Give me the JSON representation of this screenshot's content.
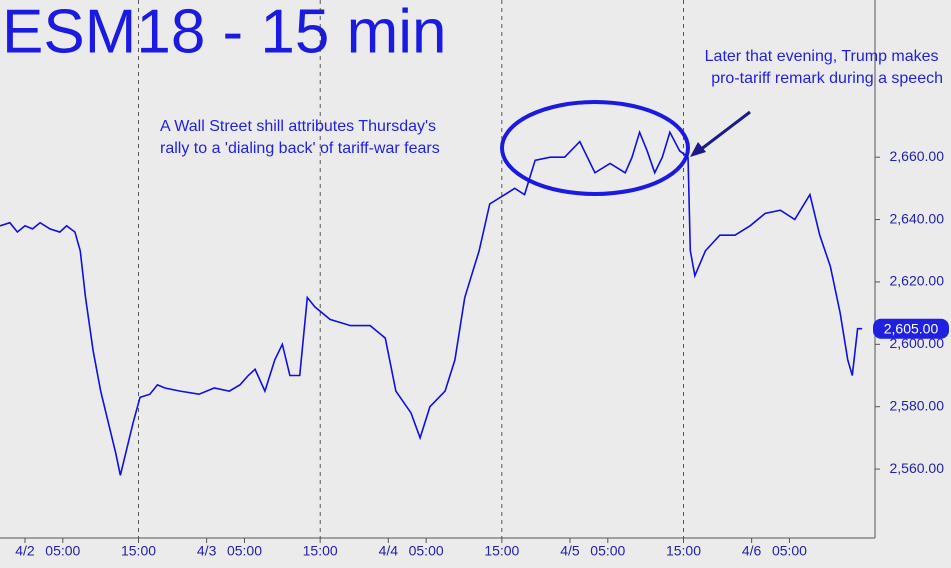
{
  "chart_data": {
    "type": "line",
    "title": "ESM18 - 15 min",
    "annotations": [
      {
        "lines": [
          "A Wall Street shill attributes Thursday's",
          "rally to a 'dialing back' of tariff-war fears"
        ]
      },
      {
        "lines": [
          "Later that evening, Trump makes",
          "pro-tariff remark during a speech"
        ]
      }
    ],
    "x": [
      -3.3,
      -2,
      -1,
      0,
      1,
      2,
      3.3,
      4.6,
      5.5,
      6.6,
      7.3,
      8,
      9,
      10,
      11,
      12,
      12.6,
      13.5,
      14.3,
      15.2,
      16.5,
      17.5,
      18.5,
      20.5,
      23,
      25,
      27,
      28.4,
      29.5,
      30.4,
      31.7,
      33,
      34,
      35,
      36.3,
      37.3,
      38.3,
      40.3,
      43,
      45.6,
      47.6,
      49,
      51,
      52.2,
      53.5,
      55.5,
      56.8,
      58.1,
      60,
      61.4,
      63.4,
      64.7,
      66,
      67.4,
      69.4,
      71.3,
      73.3,
      74.3,
      75.3,
      77.3,
      79.3,
      80.2,
      81.2,
      82.2,
      83.2,
      84.2,
      85.2,
      86.5,
      87.6,
      87.9,
      88.5,
      89.9,
      91.8,
      93.8,
      95.8,
      97.8,
      99.8,
      101.7,
      103.7,
      105,
      106.4,
      107.7,
      108.7,
      109.3,
      110,
      110.6
    ],
    "series": [
      {
        "name": "ESM18",
        "color": "#1010e0",
        "values": [
          2638,
          2639,
          2636,
          2638,
          2637,
          2639,
          2637,
          2636,
          2638,
          2636,
          2630,
          2615,
          2598,
          2585,
          2575,
          2565,
          2558,
          2567,
          2575,
          2583,
          2584,
          2587,
          2586,
          2585,
          2584,
          2586,
          2585,
          2587,
          2590,
          2592,
          2585,
          2595,
          2600,
          2590,
          2590,
          2615,
          2612,
          2608,
          2606,
          2606,
          2602,
          2585,
          2578,
          2570,
          2580,
          2585,
          2595,
          2615,
          2630,
          2645,
          2648,
          2650,
          2648,
          2659,
          2660,
          2660,
          2665,
          2660,
          2655,
          2658,
          2655,
          2660,
          2668,
          2662,
          2655,
          2660,
          2668,
          2662,
          2660,
          2630,
          2622,
          2630,
          2635,
          2635,
          2638,
          2642,
          2643,
          2640,
          2648,
          2635,
          2625,
          2610,
          2595,
          2590,
          2605,
          2605
        ]
      }
    ],
    "last_value": {
      "value": 2605,
      "label": "2,605.00"
    },
    "xlim": [
      -3.3,
      112.3
    ],
    "ylim": [
      2537.9,
      2710.4
    ],
    "xticks": [
      {
        "value": 0,
        "label": "4/2"
      },
      {
        "value": 5,
        "label": "05:00"
      },
      {
        "value": 15,
        "label": "15:00"
      },
      {
        "value": 24,
        "label": "4/3"
      },
      {
        "value": 29,
        "label": "05:00"
      },
      {
        "value": 39,
        "label": "15:00"
      },
      {
        "value": 48,
        "label": "4/4"
      },
      {
        "value": 53,
        "label": "05:00"
      },
      {
        "value": 63,
        "label": "15:00"
      },
      {
        "value": 72,
        "label": "4/5"
      },
      {
        "value": 77,
        "label": "05:00"
      },
      {
        "value": 87,
        "label": "15:00"
      },
      {
        "value": 96,
        "label": "4/6"
      },
      {
        "value": 101,
        "label": "05:00"
      }
    ],
    "yticks": [
      {
        "value": 2560,
        "label": "2,560.00"
      },
      {
        "value": 2580,
        "label": "2,580.00"
      },
      {
        "value": 2600,
        "label": "2,600.00"
      },
      {
        "value": 2620,
        "label": "2,620.00"
      },
      {
        "value": 2640,
        "label": "2,640.00"
      },
      {
        "value": 2660,
        "label": "2,660.00"
      }
    ]
  }
}
